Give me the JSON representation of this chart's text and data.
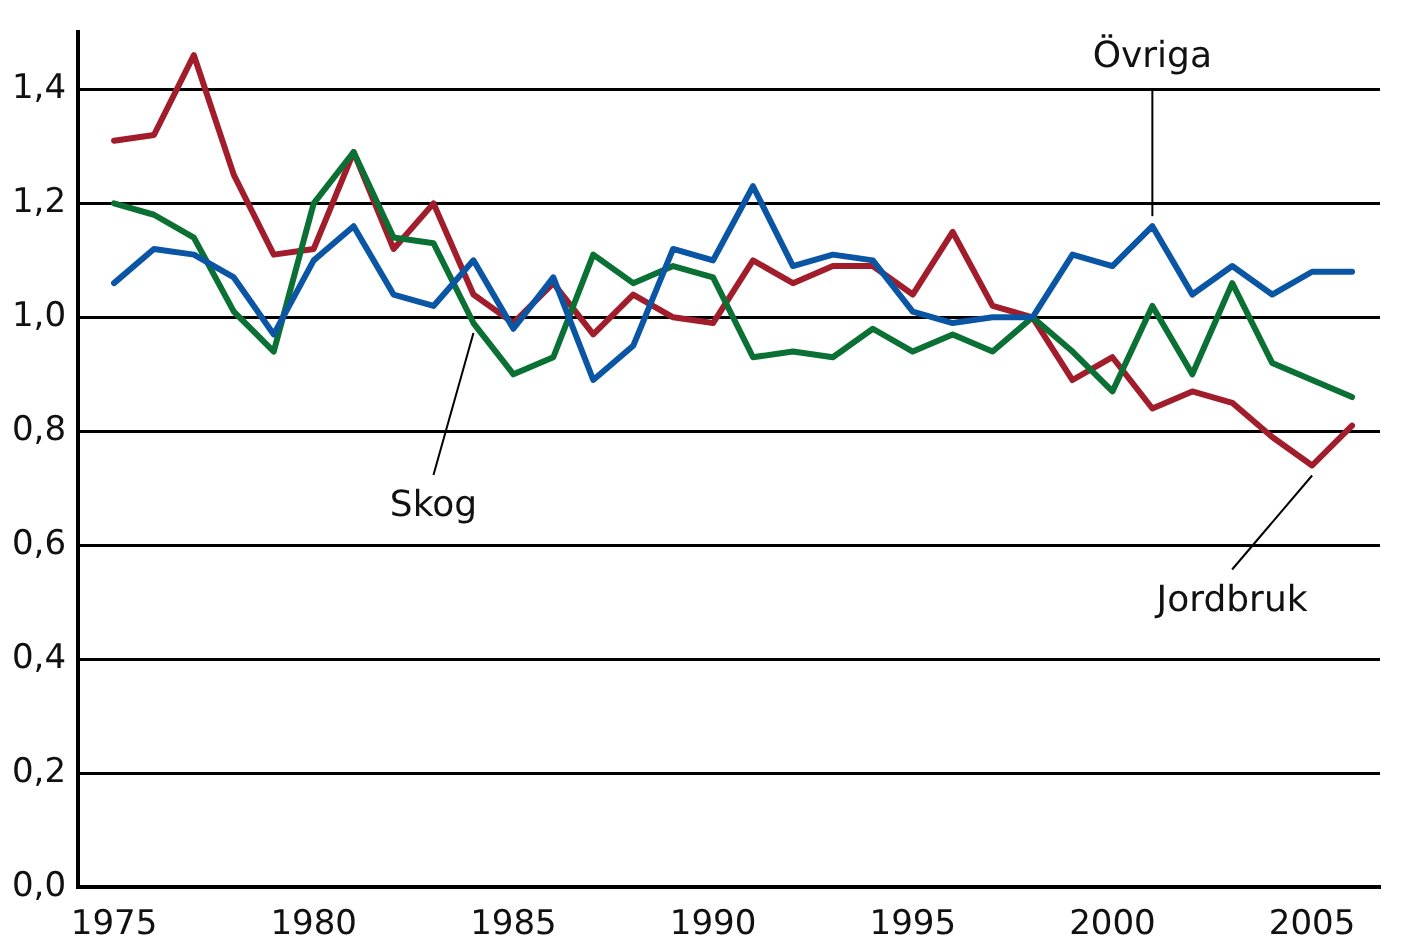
{
  "chart_data": {
    "type": "line",
    "x": [
      1975,
      1976,
      1977,
      1978,
      1979,
      1980,
      1981,
      1982,
      1983,
      1984,
      1985,
      1986,
      1987,
      1988,
      1989,
      1990,
      1991,
      1992,
      1993,
      1994,
      1995,
      1996,
      1997,
      1998,
      1999,
      2000,
      2001,
      2002,
      2003,
      2004,
      2005,
      2006
    ],
    "series": [
      {
        "name": "Övriga",
        "color": "#0a56a4",
        "values": [
          1.06,
          1.12,
          1.11,
          1.07,
          0.97,
          1.1,
          1.16,
          1.04,
          1.02,
          1.1,
          0.98,
          1.07,
          0.89,
          0.95,
          1.12,
          1.1,
          1.23,
          1.09,
          1.11,
          1.1,
          1.01,
          0.99,
          1.0,
          1.0,
          1.11,
          1.09,
          1.16,
          1.04,
          1.09,
          1.04,
          1.08,
          1.08
        ]
      },
      {
        "name": "Skog",
        "color": "#0b7034",
        "values": [
          1.2,
          1.18,
          1.14,
          1.01,
          0.94,
          1.2,
          1.29,
          1.14,
          1.13,
          0.99,
          0.9,
          0.93,
          1.11,
          1.06,
          1.09,
          1.07,
          0.93,
          0.94,
          0.93,
          0.98,
          0.94,
          0.97,
          0.94,
          1.0,
          0.94,
          0.87,
          1.02,
          0.9,
          1.06,
          0.92,
          0.89,
          0.86
        ]
      },
      {
        "name": "Jordbruk",
        "color": "#a21d2b",
        "values": [
          1.31,
          1.32,
          1.46,
          1.25,
          1.11,
          1.12,
          1.29,
          1.12,
          1.2,
          1.04,
          0.99,
          1.06,
          0.97,
          1.04,
          1.0,
          0.99,
          1.1,
          1.06,
          1.09,
          1.09,
          1.04,
          1.15,
          1.02,
          1.0,
          0.89,
          0.93,
          0.84,
          0.87,
          0.85,
          0.79,
          0.74,
          0.81
        ]
      }
    ],
    "xlim": [
      1974.1,
      2006.7
    ],
    "xticks": [
      1975,
      1980,
      1985,
      1990,
      1995,
      2000,
      2005
    ],
    "ylim": [
      0,
      1.5
    ],
    "yticks": [
      {
        "value": 0,
        "label": "0,0"
      },
      {
        "value": 0.2,
        "label": "0,2"
      },
      {
        "value": 0.4,
        "label": "0,4"
      },
      {
        "value": 0.6,
        "label": "0,6"
      },
      {
        "value": 0.8,
        "label": "0,8"
      },
      {
        "value": 1,
        "label": "1,0"
      },
      {
        "value": 1.2,
        "label": "1,2"
      },
      {
        "value": 1.4,
        "label": "1,4"
      }
    ],
    "grid": "y",
    "legend": false,
    "marker": "none",
    "line_style": "solid"
  }
}
